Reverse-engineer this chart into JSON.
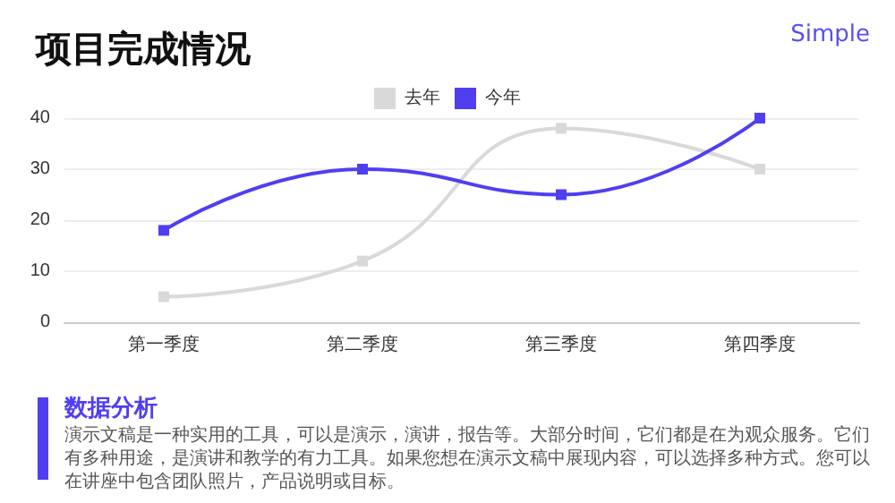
{
  "chart_data": {
    "type": "line",
    "title": "项目完成情况",
    "annotations": [
      "Simple",
      "数据分析",
      "演示文稿是一种实用的工具，可以是演示，演讲，报告等。大部分时间，它们都是在为观众服务。它们有多种用途，是演讲和教学的有力工具。如果您想在演示文稿中展现内容，可以选择多种方式。您可以在讲座中包含团队照片，产品说明或目标。"
    ],
    "categories": [
      "第一季度",
      "第二季度",
      "第三季度",
      "第四季度"
    ],
    "series": [
      {
        "name": "去年",
        "color": "#d9d9d9",
        "values": [
          5,
          12,
          38,
          30
        ]
      },
      {
        "name": "今年",
        "color": "#4f3ff0",
        "values": [
          18,
          30,
          25,
          40
        ]
      }
    ],
    "ylim": [
      0,
      40
    ],
    "yticks": [
      0,
      10,
      20,
      30,
      40
    ],
    "grid": "y",
    "legend": "top",
    "marker": "square"
  }
}
